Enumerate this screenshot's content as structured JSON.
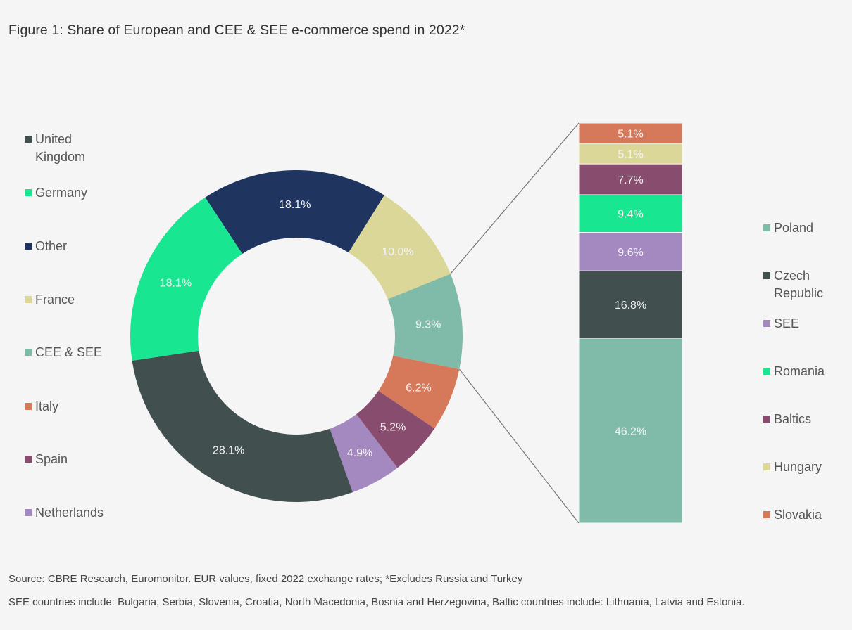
{
  "title": "Figure 1:  Share of European and CEE & SEE e-commerce spend in 2022*",
  "chart_data": [
    {
      "type": "pie",
      "donut": true,
      "legend_placement": "left",
      "slices": [
        {
          "name": "Other",
          "value": 18.1,
          "label": "18.1%",
          "color": "#1f3560"
        },
        {
          "name": "France",
          "value": 10.0,
          "label": "10.0%",
          "color": "#dbd798"
        },
        {
          "name": "CEE & SEE",
          "value": 9.3,
          "label": "9.3%",
          "color": "#80bba9"
        },
        {
          "name": "Italy",
          "value": 6.2,
          "label": "6.2%",
          "color": "#d5795a"
        },
        {
          "name": "Spain",
          "value": 5.2,
          "label": "5.2%",
          "color": "#884c6e"
        },
        {
          "name": "Netherlands",
          "value": 4.9,
          "label": "4.9%",
          "color": "#a488c0"
        },
        {
          "name": "United Kingdom",
          "value": 28.1,
          "label": "28.1%",
          "color": "#414f4f"
        },
        {
          "name": "Germany",
          "value": 18.1,
          "label": "18.1%",
          "color": "#19e691"
        }
      ],
      "legend": [
        {
          "name": "United Kingdom",
          "lines": [
            "United",
            "Kingdom"
          ],
          "color": "#414f4f"
        },
        {
          "name": "Germany",
          "lines": [
            "Germany"
          ],
          "color": "#19e691"
        },
        {
          "name": "Other",
          "lines": [
            "Other"
          ],
          "color": "#1f3560"
        },
        {
          "name": "France",
          "lines": [
            "France"
          ],
          "color": "#dbd798"
        },
        {
          "name": "CEE & SEE",
          "lines": [
            "CEE & SEE"
          ],
          "color": "#80bba9"
        },
        {
          "name": "Italy",
          "lines": [
            "Italy"
          ],
          "color": "#d5795a"
        },
        {
          "name": "Spain",
          "lines": [
            "Spain"
          ],
          "color": "#884c6e"
        },
        {
          "name": "Netherlands",
          "lines": [
            "Netherlands"
          ],
          "color": "#a488c0"
        }
      ]
    },
    {
      "type": "bar",
      "stacked": true,
      "breakdown_of": "CEE & SEE",
      "legend_placement": "right",
      "segments_bottom_to_top": [
        {
          "name": "Poland",
          "value": 46.2,
          "label": "46.2%",
          "color": "#80bba9"
        },
        {
          "name": "Czech Republic",
          "value": 16.8,
          "label": "16.8%",
          "color": "#414f4f"
        },
        {
          "name": "SEE",
          "value": 9.6,
          "label": "9.6%",
          "color": "#a488c0"
        },
        {
          "name": "Romania",
          "value": 9.4,
          "label": "9.4%",
          "color": "#19e691"
        },
        {
          "name": "Baltics",
          "value": 7.7,
          "label": "7.7%",
          "color": "#884c6e"
        },
        {
          "name": "Hungary",
          "value": 5.1,
          "label": "5.1%",
          "color": "#dbd798"
        },
        {
          "name": "Slovakia",
          "value": 5.1,
          "label": "5.1%",
          "color": "#d5795a"
        }
      ],
      "legend": [
        {
          "name": "Poland",
          "lines": [
            "Poland"
          ],
          "color": "#80bba9"
        },
        {
          "name": "Czech Republic",
          "lines": [
            "Czech",
            "Republic"
          ],
          "color": "#414f4f"
        },
        {
          "name": "SEE",
          "lines": [
            "SEE"
          ],
          "color": "#a488c0"
        },
        {
          "name": "Romania",
          "lines": [
            "Romania"
          ],
          "color": "#19e691"
        },
        {
          "name": "Baltics",
          "lines": [
            "Baltics"
          ],
          "color": "#884c6e"
        },
        {
          "name": "Hungary",
          "lines": [
            "Hungary"
          ],
          "color": "#dbd798"
        },
        {
          "name": "Slovakia",
          "lines": [
            "Slovakia"
          ],
          "color": "#d5795a"
        }
      ]
    }
  ],
  "notes": {
    "source": "Source: CBRE Research, Euromonitor. EUR values, fixed 2022 exchange rates; *Excludes Russia and Turkey",
    "see": "SEE countries include: Bulgaria, Serbia, Slovenia, Croatia, North Macedonia, Bosnia and Herzegovina, Baltic countries include: Lithuania, Latvia and Estonia."
  }
}
